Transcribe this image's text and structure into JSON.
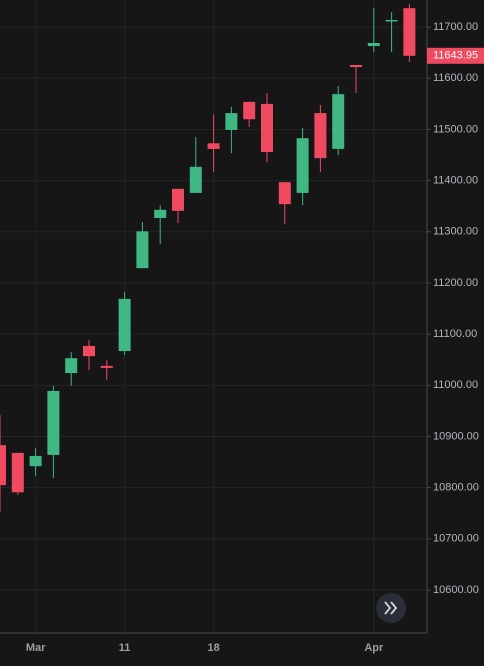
{
  "chart_data": {
    "type": "candlestick",
    "categories": [
      null,
      null,
      "Mar",
      null,
      null,
      null,
      null,
      "11",
      null,
      null,
      null,
      null,
      "18",
      null,
      null,
      null,
      null,
      null,
      null,
      null,
      null,
      "Apr",
      null,
      null
    ],
    "open": [
      10883,
      10868,
      10842,
      10864,
      11024,
      11077,
      11038,
      11067,
      11229,
      11327,
      11384,
      11376,
      11473,
      11499,
      11554,
      11550,
      11397,
      11376,
      11532,
      11462,
      11626,
      11663,
      11712,
      11737
    ],
    "high": [
      10942,
      10868,
      10877,
      10999,
      11065,
      11089,
      11049,
      11182,
      11319,
      11352,
      11384,
      11485,
      11530,
      11544,
      11554,
      11571,
      11397,
      11503,
      11548,
      11585,
      11626,
      11737,
      11729,
      11745
    ],
    "low": [
      10752,
      10786,
      10823,
      10819,
      10999,
      11030,
      11010,
      11059,
      11229,
      11276,
      11317,
      11376,
      11417,
      11454,
      11505,
      11436,
      11315,
      11352,
      11417,
      11450,
      11571,
      11651,
      11651,
      11632
    ],
    "close": [
      10805,
      10791,
      10862,
      10989,
      11053,
      11057,
      11034,
      11169,
      11301,
      11343,
      11341,
      11427,
      11462,
      11532,
      11520,
      11456,
      11354,
      11483,
      11444,
      11569,
      11622,
      11669,
      11714,
      11643.95
    ],
    "last_price_label": "11643.95",
    "up_color": "#3fb883",
    "down_color": "#ef4a60",
    "ylim": [
      10516,
      11753
    ],
    "yticks": [
      {
        "value": 10600,
        "label": "10600.00"
      },
      {
        "value": 10700,
        "label": "10700.00"
      },
      {
        "value": 10800,
        "label": "10800.00"
      },
      {
        "value": 10900,
        "label": "10900.00"
      },
      {
        "value": 11000,
        "label": "11000.00"
      },
      {
        "value": 11100,
        "label": "11100.00"
      },
      {
        "value": 11200,
        "label": "11200.00"
      },
      {
        "value": 11300,
        "label": "11300.00"
      },
      {
        "value": 11400,
        "label": "11400.00"
      },
      {
        "value": 11500,
        "label": "11500.00"
      },
      {
        "value": 11600,
        "label": "11600.00"
      },
      {
        "value": 11700,
        "label": "11700.00"
      }
    ],
    "grid": true
  }
}
